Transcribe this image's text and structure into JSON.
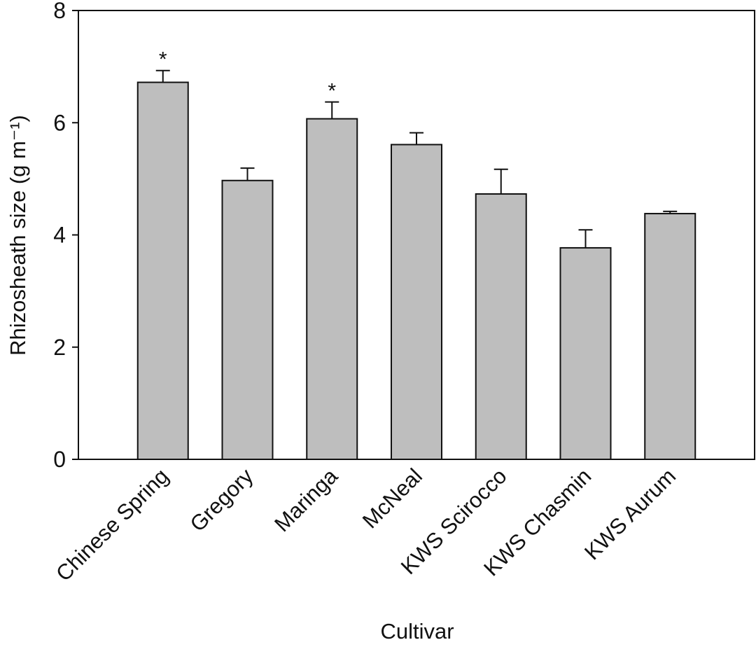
{
  "chart_data": {
    "type": "bar",
    "categories": [
      "Chinese Spring",
      "Gregory",
      "Maringa",
      "McNeal",
      "KWS Scirocco",
      "KWS Chasmin",
      "KWS Aurum"
    ],
    "values": [
      6.72,
      4.97,
      6.07,
      5.61,
      4.73,
      3.77,
      4.38
    ],
    "errors": [
      0.21,
      0.22,
      0.3,
      0.21,
      0.44,
      0.32,
      0.04
    ],
    "significance": [
      "*",
      null,
      "*",
      null,
      null,
      null,
      null
    ],
    "color": "#bebebe",
    "ylim": [
      0,
      8
    ],
    "yticks": [
      0,
      2,
      4,
      6,
      8
    ],
    "ylabel": "Rhizosheath size (g m⁻¹)",
    "xlabel": "Cultivar"
  }
}
